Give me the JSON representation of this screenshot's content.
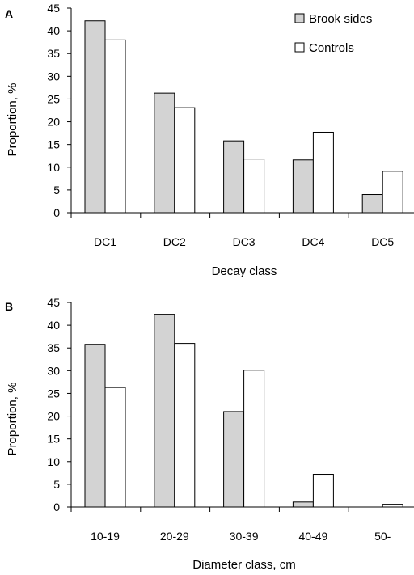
{
  "legend": {
    "brook": "Brook sides",
    "controls": "Controls"
  },
  "chart_data": [
    {
      "type": "bar",
      "panel": "A",
      "xlabel": "Decay class",
      "ylabel": "Proportion, %",
      "ylim": [
        0,
        45
      ],
      "yticks": [
        0,
        5,
        10,
        15,
        20,
        25,
        30,
        35,
        40,
        45
      ],
      "categories": [
        "DC1",
        "DC2",
        "DC3",
        "DC4",
        "DC5"
      ],
      "series": [
        {
          "name": "Brook sides",
          "color": "#d3d3d3",
          "values": [
            42.2,
            26.3,
            15.8,
            11.6,
            4.0
          ]
        },
        {
          "name": "Controls",
          "color": "#ffffff",
          "values": [
            38.0,
            23.1,
            11.8,
            17.7,
            9.1
          ]
        }
      ],
      "legend_position": "top-right",
      "grid": false
    },
    {
      "type": "bar",
      "panel": "B",
      "xlabel": "Diameter class, cm",
      "ylabel": "Proportion, %",
      "ylim": [
        0,
        45
      ],
      "yticks": [
        0,
        5,
        10,
        15,
        20,
        25,
        30,
        35,
        40,
        45
      ],
      "categories": [
        "10-19",
        "20-29",
        "30-39",
        "40-49",
        "50-"
      ],
      "series": [
        {
          "name": "Brook sides",
          "color": "#d3d3d3",
          "values": [
            35.8,
            42.4,
            21.0,
            1.1,
            0.0
          ]
        },
        {
          "name": "Controls",
          "color": "#ffffff",
          "values": [
            26.3,
            36.0,
            30.1,
            7.2,
            0.6
          ]
        }
      ],
      "grid": false
    }
  ]
}
